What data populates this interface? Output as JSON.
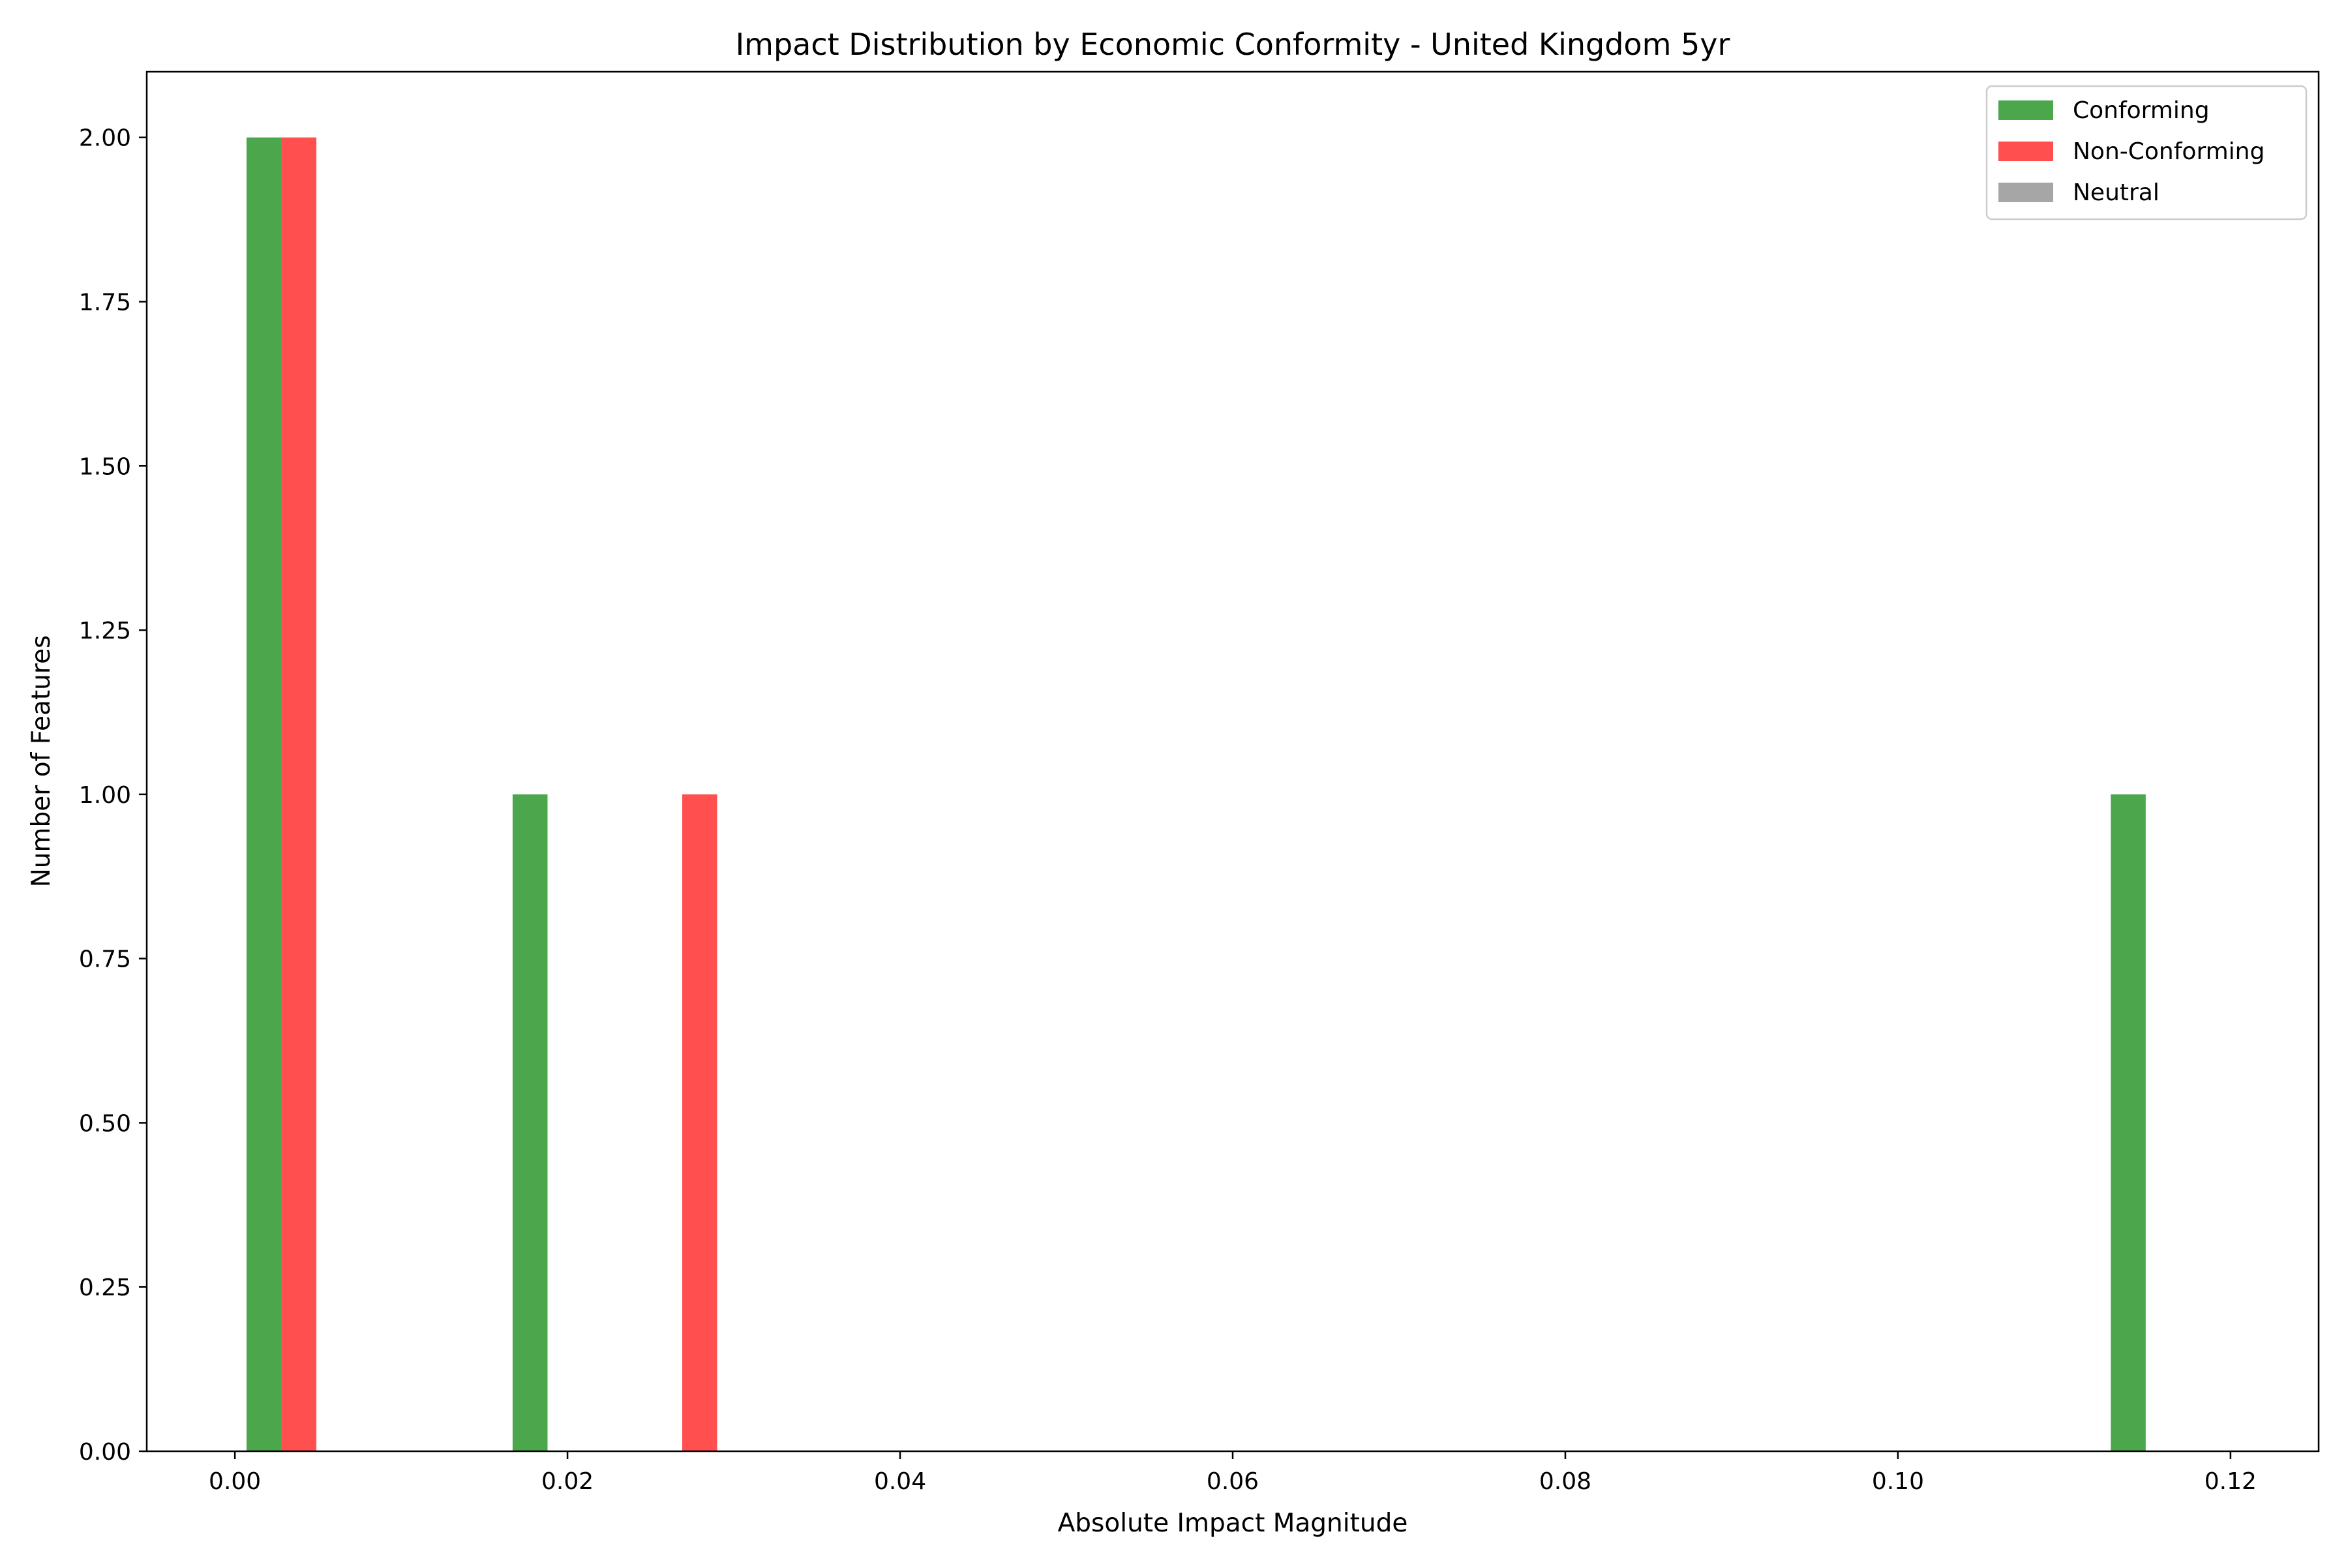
{
  "chart_data": {
    "type": "bar",
    "title": "Impact Distribution by Economic Conformity - United Kingdom 5yr",
    "xlabel": "Absolute Impact Magnitude",
    "ylabel": "Number of Features",
    "xlim": [
      -0.0053,
      0.1253
    ],
    "ylim": [
      0,
      2.1
    ],
    "xticks": [
      0.0,
      0.02,
      0.04,
      0.06,
      0.08,
      0.1,
      0.12
    ],
    "xtick_labels": [
      "0.00",
      "0.02",
      "0.04",
      "0.06",
      "0.08",
      "0.10",
      "0.12"
    ],
    "yticks": [
      0.0,
      0.25,
      0.5,
      0.75,
      1.0,
      1.25,
      1.5,
      1.75,
      2.0
    ],
    "ytick_labels": [
      "0.00",
      "0.25",
      "0.50",
      "0.75",
      "1.00",
      "1.25",
      "1.50",
      "1.75",
      "2.00"
    ],
    "grid": false,
    "legend_position": "top-right",
    "series": [
      {
        "name": "Conforming",
        "color": "#4ca64c",
        "bars": [
          {
            "x0": 0.0007,
            "x1": 0.0028,
            "value": 2
          },
          {
            "x0": 0.0167,
            "x1": 0.0188,
            "value": 1
          },
          {
            "x0": 0.1128,
            "x1": 0.1149,
            "value": 1
          }
        ]
      },
      {
        "name": "Non-Conforming",
        "color": "#ff4f4f",
        "bars": [
          {
            "x0": 0.0028,
            "x1": 0.0049,
            "value": 2
          },
          {
            "x0": 0.0269,
            "x1": 0.029,
            "value": 1
          }
        ]
      },
      {
        "name": "Neutral",
        "color": "#a6a6a6",
        "bars": []
      }
    ]
  }
}
